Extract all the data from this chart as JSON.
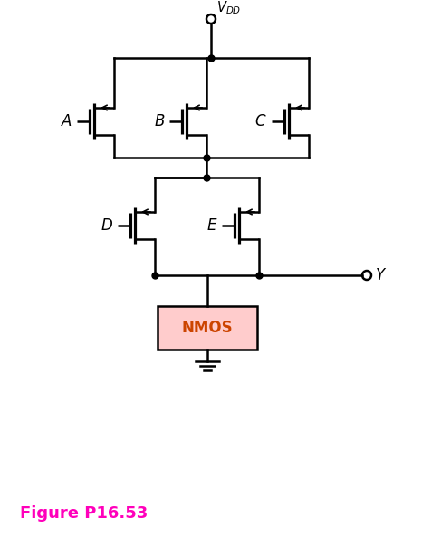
{
  "fig_width": 4.66,
  "fig_height": 6.04,
  "dpi": 100,
  "bg_color": "#ffffff",
  "line_color": "#000000",
  "line_width": 1.8,
  "figure_label": "Figure P16.53",
  "figure_label_color": "#ff00bb",
  "figure_label_fontsize": 13,
  "vdd_label": "$V_{DD}$",
  "nmos_box_color": "#ffcccc",
  "nmos_text": "NMOS",
  "nmos_text_color": "#cc4400",
  "output_label": "$Y$"
}
